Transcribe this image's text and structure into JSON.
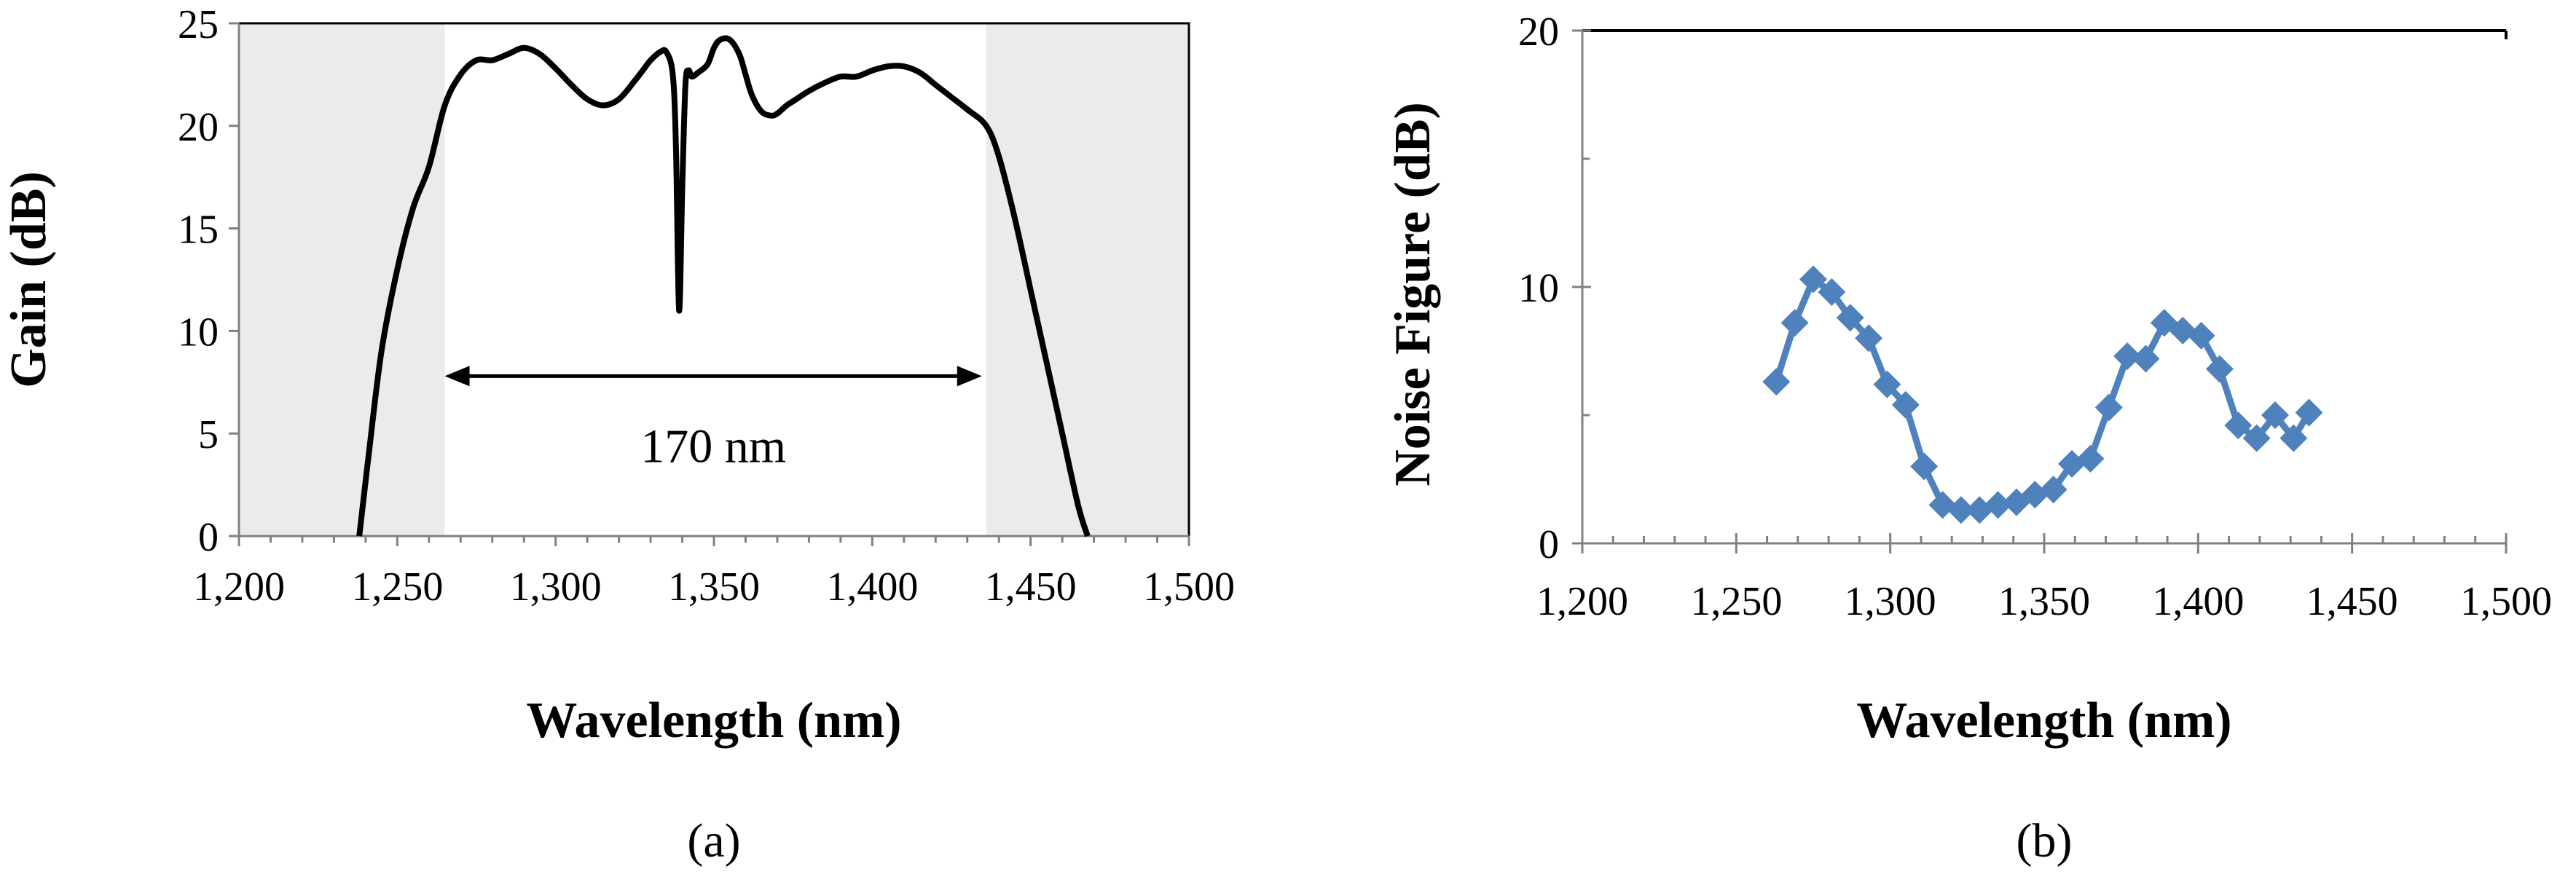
{
  "chart_data": [
    {
      "panel": "(a)",
      "type": "line",
      "title": "",
      "xlabel": "Wavelength (nm)",
      "ylabel": "Gain (dB)",
      "xlim": [
        1200,
        1500
      ],
      "ylim": [
        0,
        25
      ],
      "xticks": [
        "1,200",
        "1,250",
        "1,300",
        "1,350",
        "1,400",
        "1,450",
        "1,500"
      ],
      "yticks": [
        "0",
        "5",
        "10",
        "15",
        "20",
        "25"
      ],
      "shaded_ranges": [
        [
          1200,
          1265
        ],
        [
          1436,
          1500
        ]
      ],
      "annotation": {
        "text": "170 nm",
        "from": 1265,
        "to": 1436,
        "y": 7.8
      },
      "series": [
        {
          "name": "Gain",
          "color": "#000000",
          "x": [
            1238,
            1241,
            1245,
            1250,
            1255,
            1260,
            1265,
            1270,
            1275,
            1280,
            1285,
            1290,
            1295,
            1300,
            1305,
            1310,
            1315,
            1320,
            1325,
            1328,
            1330,
            1333,
            1335,
            1337,
            1338,
            1339,
            1340,
            1341,
            1342,
            1343,
            1345,
            1348,
            1350,
            1352,
            1355,
            1358,
            1360,
            1362,
            1365,
            1368,
            1370,
            1373,
            1375,
            1380,
            1385,
            1390,
            1395,
            1400,
            1405,
            1410,
            1415,
            1420,
            1425,
            1430,
            1436,
            1440,
            1445,
            1450,
            1455,
            1460,
            1465,
            1468
          ],
          "y": [
            0,
            4,
            9,
            13,
            16,
            18,
            21,
            22.5,
            23.2,
            23.2,
            23.5,
            23.8,
            23.5,
            22.8,
            22,
            21.3,
            21,
            21.3,
            22.2,
            22.8,
            23.2,
            23.6,
            23.6,
            22.5,
            19,
            11,
            17,
            22,
            22.7,
            22.4,
            22.6,
            23,
            23.8,
            24.2,
            24.2,
            23.5,
            22.5,
            21.5,
            20.7,
            20.5,
            20.6,
            21,
            21.2,
            21.7,
            22.1,
            22.4,
            22.4,
            22.7,
            22.9,
            22.9,
            22.6,
            22,
            21.4,
            20.8,
            20,
            18.5,
            15.5,
            12,
            8.5,
            5,
            1.5,
            0
          ]
        }
      ]
    },
    {
      "panel": "(b)",
      "type": "line",
      "title": "",
      "xlabel": "Wavelength (nm)",
      "ylabel": "Noise Figure (dB)",
      "xlim": [
        1200,
        1500
      ],
      "ylim": [
        0,
        20
      ],
      "xticks": [
        "1,200",
        "1,250",
        "1,300",
        "1,350",
        "1,400",
        "1,450",
        "1,500"
      ],
      "yticks": [
        "0",
        "10",
        "20"
      ],
      "series": [
        {
          "name": "Noise Figure",
          "color": "#4F81BD",
          "marker": "diamond",
          "x": [
            1263,
            1269,
            1275,
            1281,
            1287,
            1293,
            1299,
            1305,
            1311,
            1317,
            1323,
            1329,
            1335,
            1341,
            1347,
            1353,
            1359,
            1365,
            1371,
            1377,
            1383,
            1389,
            1395,
            1401,
            1407,
            1413,
            1419,
            1425,
            1431,
            1436
          ],
          "y": [
            6.3,
            8.6,
            10.3,
            9.8,
            8.8,
            8.0,
            6.2,
            5.4,
            3.0,
            1.5,
            1.3,
            1.3,
            1.5,
            1.6,
            1.9,
            2.1,
            3.1,
            3.3,
            5.3,
            7.3,
            7.2,
            8.6,
            8.3,
            8.1,
            6.8,
            4.6,
            4.1,
            5.0,
            4.1,
            5.1
          ]
        }
      ]
    }
  ]
}
